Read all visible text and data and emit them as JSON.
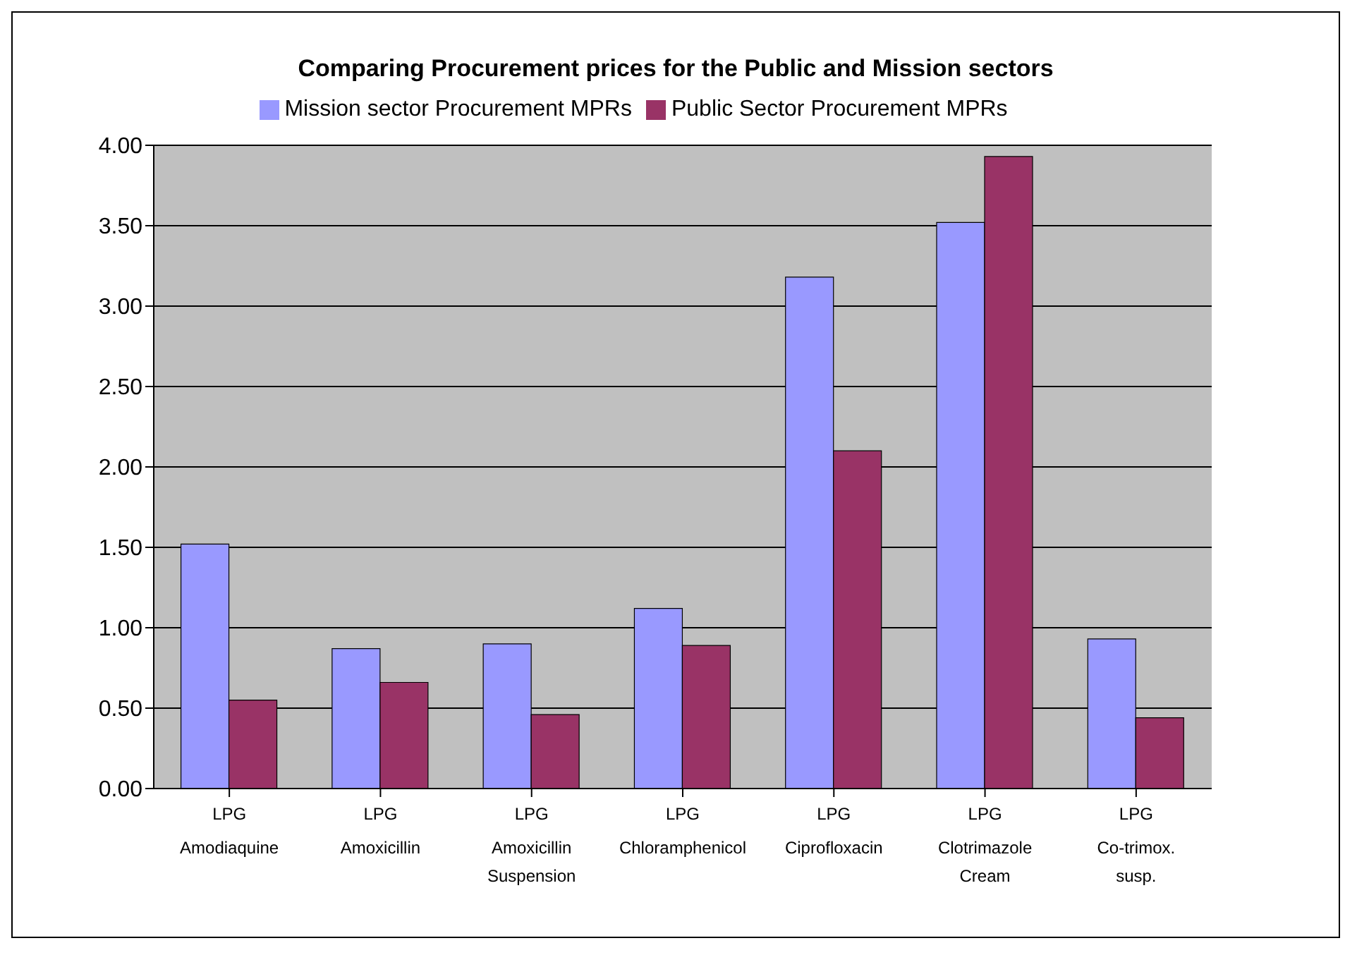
{
  "chart_data": {
    "type": "bar",
    "title": "Comparing Procurement prices for the Public and Mission sectors",
    "categories": [
      "LPG\nAmodiaquine",
      "LPG\nAmoxicillin",
      "LPG\nAmoxicillin Suspension",
      "LPG\nChloramphenicol",
      "LPG\nCiprofloxacin",
      "LPG\nClotrimazole Cream",
      "LPG\nCo-trimox. susp."
    ],
    "series": [
      {
        "name": "Mission sector Procurement MPRs",
        "color": "#9999ff",
        "values": [
          1.52,
          0.87,
          0.9,
          1.12,
          3.18,
          3.52,
          0.93
        ]
      },
      {
        "name": "Public Sector Procurement MPRs",
        "color": "#993366",
        "values": [
          0.55,
          0.66,
          0.46,
          0.89,
          2.1,
          3.93,
          0.44
        ]
      }
    ],
    "ylim": [
      0,
      4
    ],
    "yticks": [
      {
        "value": 0,
        "label": "0.00"
      },
      {
        "value": 0.5,
        "label": "0.50"
      },
      {
        "value": 1,
        "label": "1.00"
      },
      {
        "value": 1.5,
        "label": "1.50"
      },
      {
        "value": 2,
        "label": "2.00"
      },
      {
        "value": 2.5,
        "label": "2.50"
      },
      {
        "value": 3,
        "label": "3.00"
      },
      {
        "value": 3.5,
        "label": "3.50"
      },
      {
        "value": 4,
        "label": "4.00"
      }
    ],
    "grid": "y",
    "legend": "top"
  }
}
